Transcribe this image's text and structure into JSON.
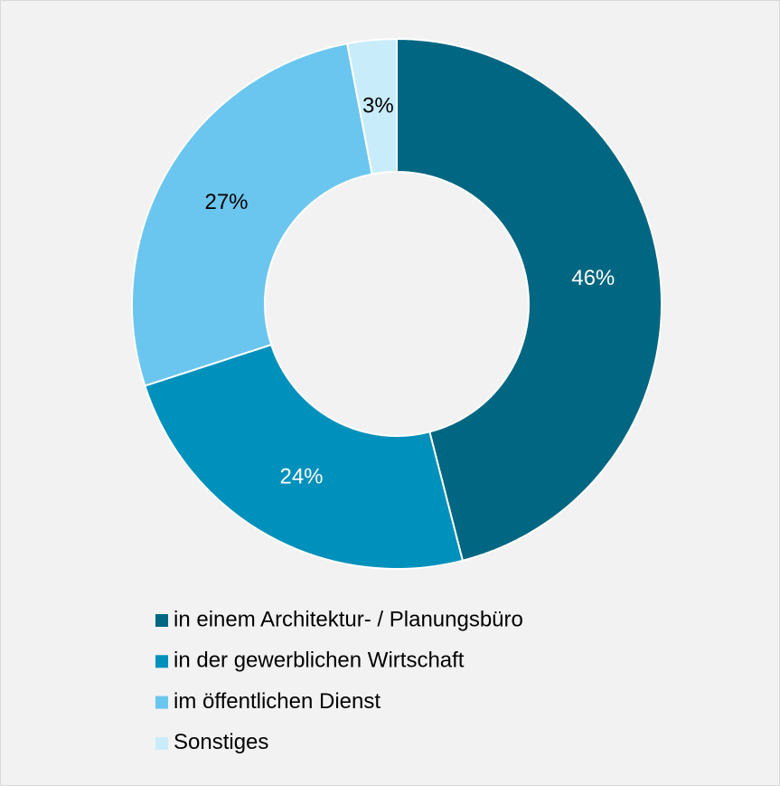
{
  "chart_data": {
    "type": "donut",
    "categories": [
      "in einem Architektur- / Planungsbüro",
      "in der gewerblichen Wirtschaft",
      "im öffentlichen Dienst",
      "Sonstiges"
    ],
    "values": [
      46,
      24,
      27,
      3
    ],
    "value_labels": [
      "46%",
      "24%",
      "27%",
      "3%"
    ],
    "colors": [
      "#006682",
      "#0090bc",
      "#6ac6ef",
      "#c9ecfa"
    ],
    "label_colors": [
      "#ffffff",
      "#ffffff",
      "#000000",
      "#000000"
    ],
    "legend": "bottom"
  }
}
